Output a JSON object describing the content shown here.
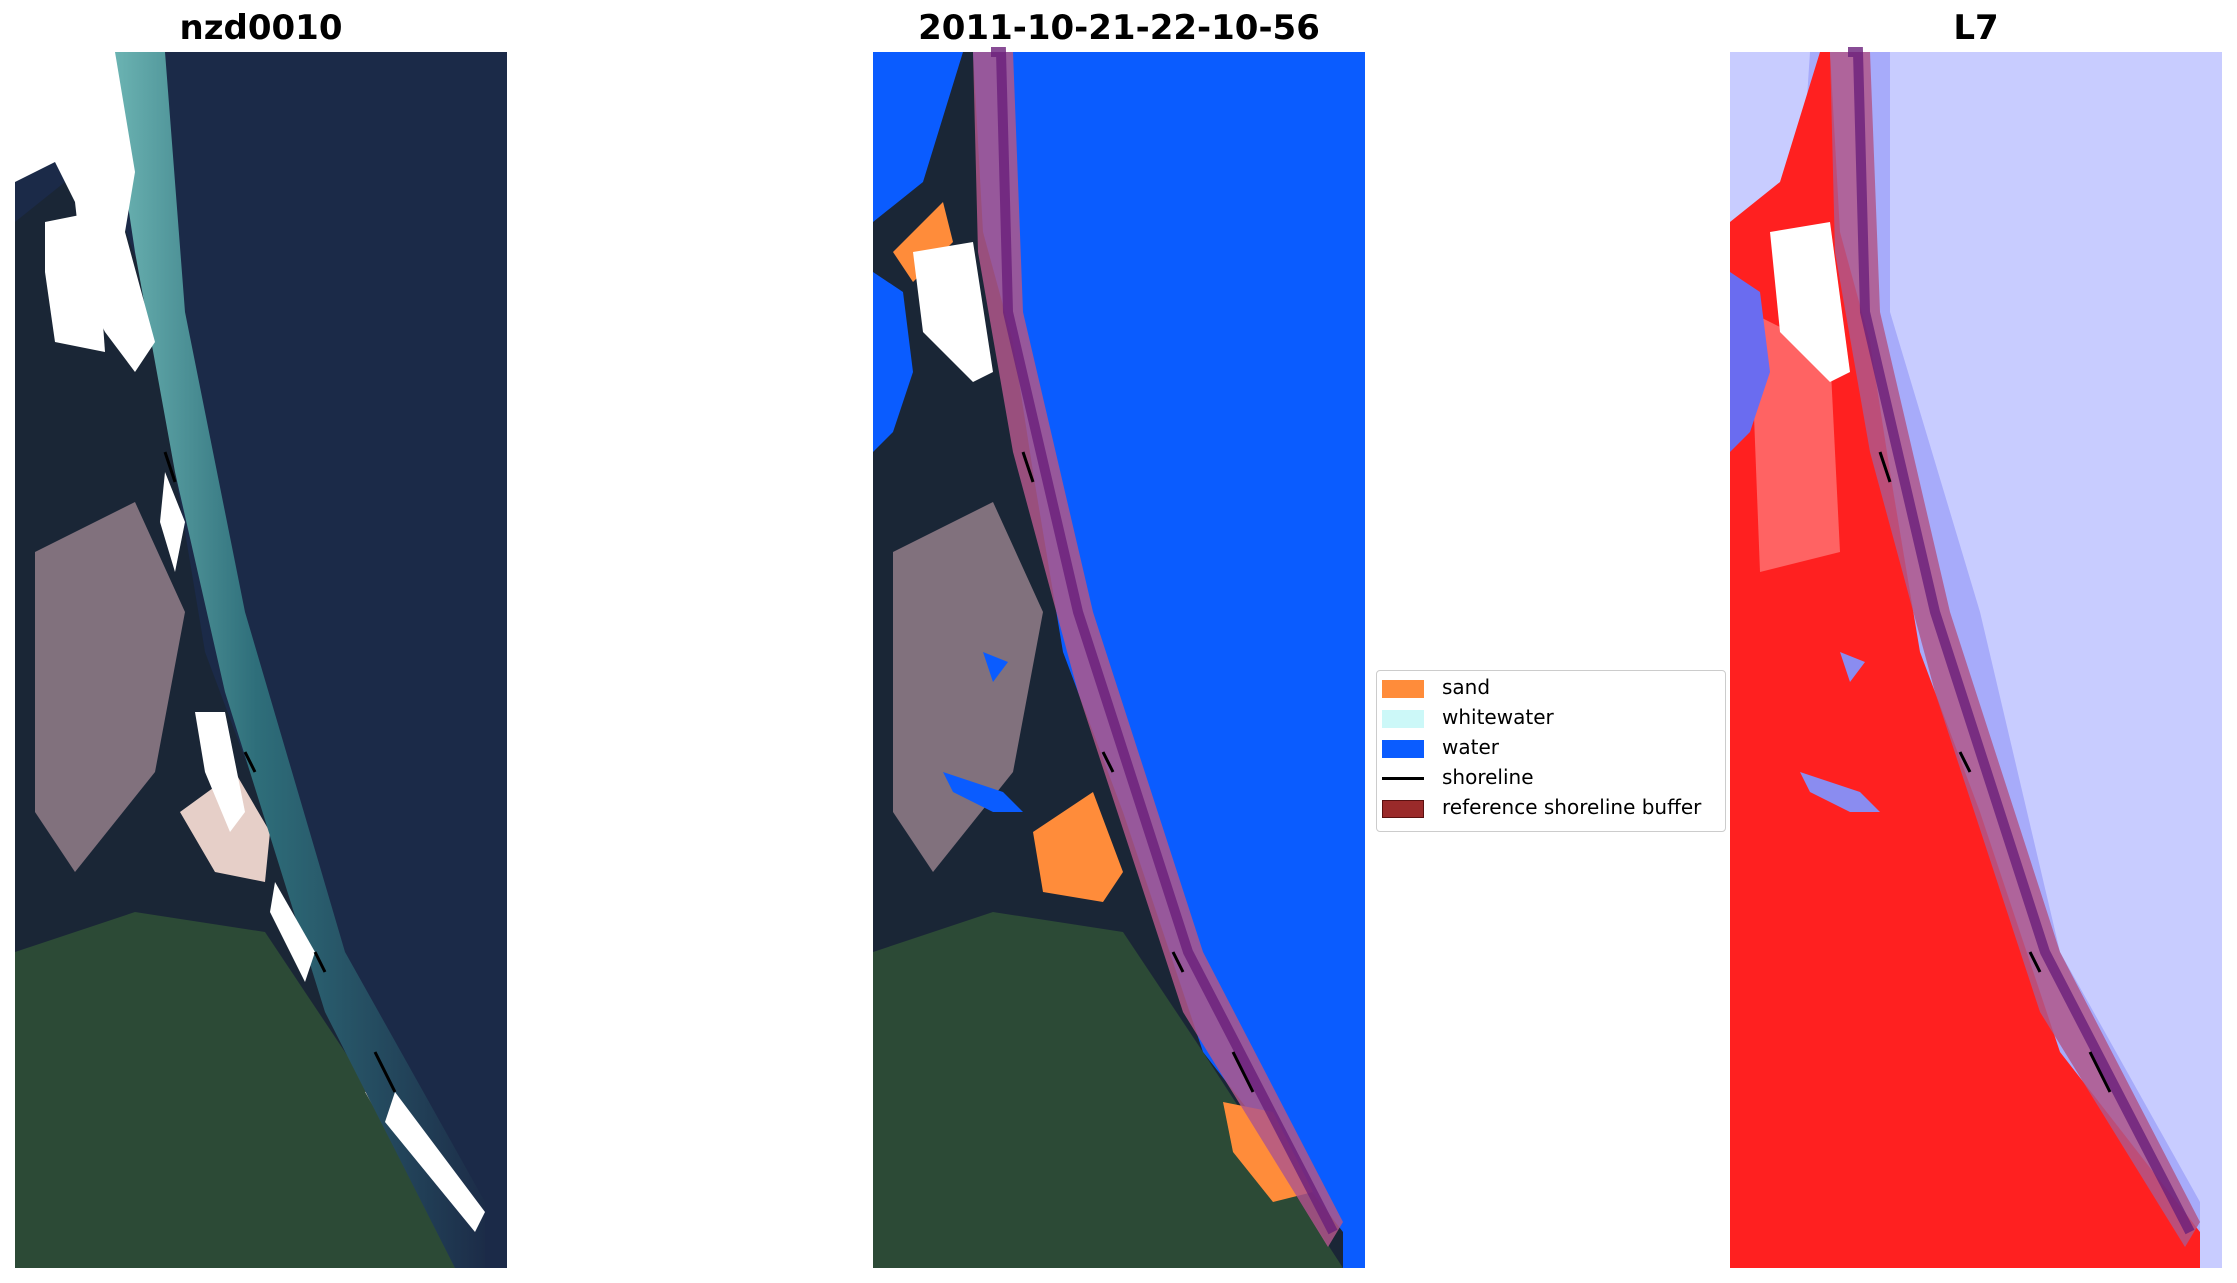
{
  "panels": [
    {
      "title": "nzd0010"
    },
    {
      "title": "2011-10-21-22-10-56"
    },
    {
      "title": "L7"
    }
  ],
  "legend": {
    "items": [
      {
        "label": "sand",
        "color": "#ff8c3a",
        "kind": "patch"
      },
      {
        "label": "whitewater",
        "color": "#ccf8f8",
        "kind": "patch"
      },
      {
        "label": "water",
        "color": "#0a5cff",
        "kind": "patch"
      },
      {
        "label": "shoreline",
        "color": "#000000",
        "kind": "line"
      },
      {
        "label": "reference shoreline buffer",
        "color": "#9a2a2a",
        "kind": "patch"
      }
    ]
  },
  "colors": {
    "ocean_rgb": "#1b2a48",
    "coast_teal": "#2e6e7a",
    "land_dark": "#18263a",
    "land_green": "#2c4a36",
    "land_pink": "#b99aa4",
    "water_class": "#0a5cff",
    "sand_class": "#ff8c3a",
    "buffer": "#b0578a",
    "index_red": "#ff2020",
    "index_blue": "#c8ccff"
  }
}
